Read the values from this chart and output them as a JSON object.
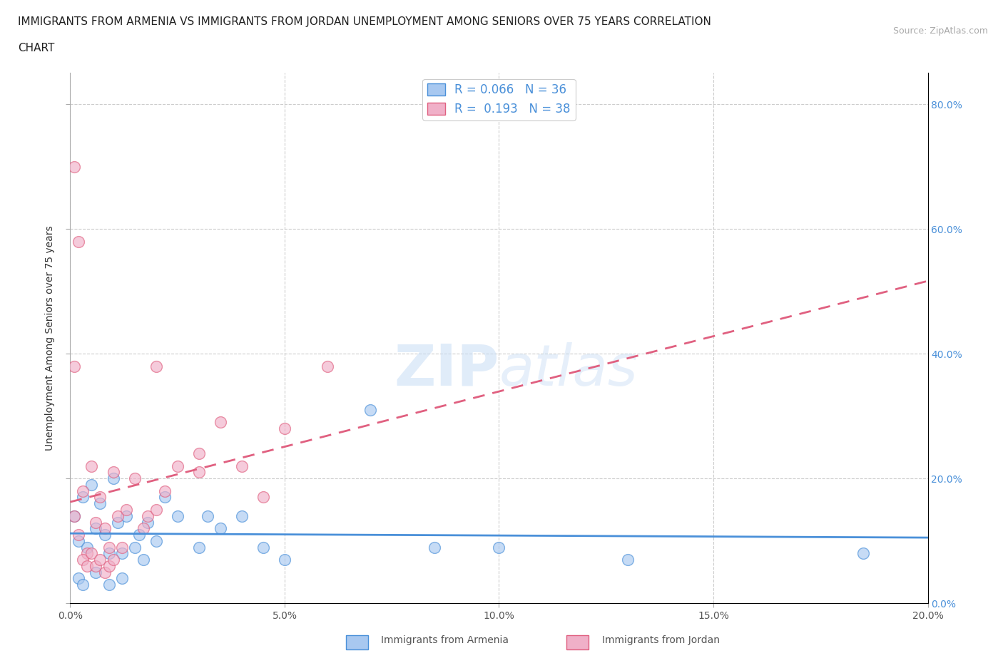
{
  "title_line1": "IMMIGRANTS FROM ARMENIA VS IMMIGRANTS FROM JORDAN UNEMPLOYMENT AMONG SENIORS OVER 75 YEARS CORRELATION",
  "title_line2": "CHART",
  "source": "Source: ZipAtlas.com",
  "ylabel": "Unemployment Among Seniors over 75 years",
  "legend_label1": "Immigrants from Armenia",
  "legend_label2": "Immigrants from Jordan",
  "R1": 0.066,
  "N1": 36,
  "R2": 0.193,
  "N2": 38,
  "xlim": [
    0.0,
    0.2
  ],
  "ylim": [
    0.0,
    0.85
  ],
  "color_armenia": "#a8c8f0",
  "color_jordan": "#f0b0c8",
  "color_line_armenia": "#4a90d9",
  "color_line_jordan": "#e06080",
  "color_trendline_armenia": "#4a90d9",
  "color_trendline_jordan": "#e06080",
  "watermark": "ZIPatlas",
  "armenia_x": [
    0.001,
    0.002,
    0.003,
    0.004,
    0.005,
    0.006,
    0.007,
    0.008,
    0.009,
    0.01,
    0.011,
    0.012,
    0.013,
    0.015,
    0.016,
    0.017,
    0.018,
    0.02,
    0.022,
    0.025,
    0.03,
    0.032,
    0.035,
    0.04,
    0.045,
    0.05,
    0.07,
    0.085,
    0.1,
    0.13,
    0.185,
    0.002,
    0.003,
    0.006,
    0.009,
    0.012
  ],
  "armenia_y": [
    0.14,
    0.1,
    0.17,
    0.09,
    0.19,
    0.12,
    0.16,
    0.11,
    0.08,
    0.2,
    0.13,
    0.08,
    0.14,
    0.09,
    0.11,
    0.07,
    0.13,
    0.1,
    0.17,
    0.14,
    0.09,
    0.14,
    0.12,
    0.14,
    0.09,
    0.07,
    0.31,
    0.09,
    0.09,
    0.07,
    0.08,
    0.04,
    0.03,
    0.05,
    0.03,
    0.04
  ],
  "jordan_x": [
    0.001,
    0.002,
    0.003,
    0.004,
    0.005,
    0.006,
    0.007,
    0.008,
    0.009,
    0.01,
    0.011,
    0.012,
    0.013,
    0.015,
    0.017,
    0.018,
    0.02,
    0.022,
    0.025,
    0.03,
    0.035,
    0.04,
    0.045,
    0.003,
    0.004,
    0.005,
    0.006,
    0.007,
    0.008,
    0.009,
    0.01,
    0.001,
    0.002,
    0.05,
    0.06,
    0.02,
    0.03,
    0.001
  ],
  "jordan_y": [
    0.14,
    0.11,
    0.18,
    0.08,
    0.22,
    0.13,
    0.17,
    0.12,
    0.09,
    0.21,
    0.14,
    0.09,
    0.15,
    0.2,
    0.12,
    0.14,
    0.15,
    0.18,
    0.22,
    0.24,
    0.29,
    0.22,
    0.17,
    0.07,
    0.06,
    0.08,
    0.06,
    0.07,
    0.05,
    0.06,
    0.07,
    0.7,
    0.58,
    0.28,
    0.38,
    0.38,
    0.21,
    0.38
  ]
}
